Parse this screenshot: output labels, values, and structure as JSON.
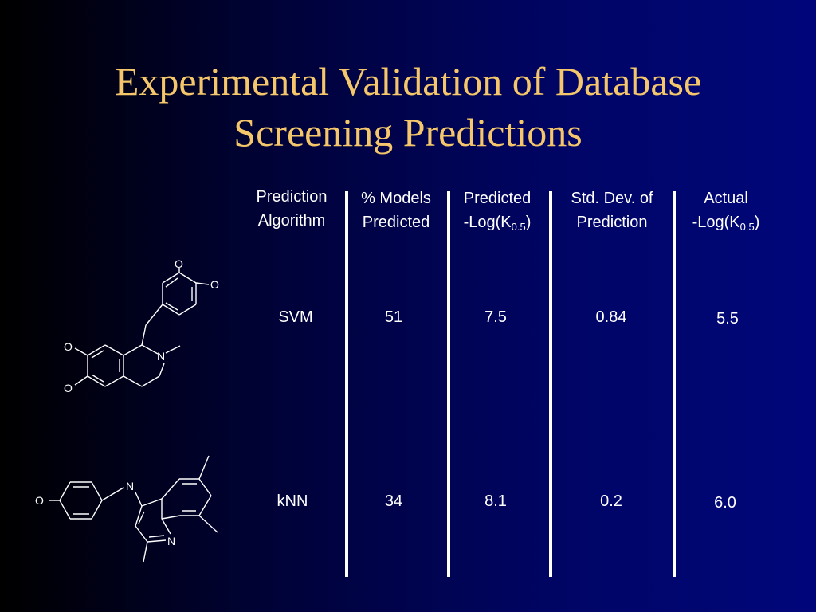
{
  "title": {
    "line1": "Experimental Validation of Database",
    "line2": "Screening Predictions"
  },
  "colors": {
    "title": "#f5c76a",
    "text": "#ffffff",
    "background_left": "#000000",
    "background_right": "#00067a"
  },
  "table": {
    "headers": [
      {
        "line1": "Prediction",
        "line2": "Algorithm"
      },
      {
        "line1": "% Models",
        "line2": "Predicted"
      },
      {
        "line1": "Predicted",
        "line2_prefix": "-Log(K",
        "line2_sub": "0.5",
        "line2_suffix": ")"
      },
      {
        "line1": "Std. Dev. of",
        "line2": "Prediction"
      },
      {
        "line1": "Actual",
        "line2_prefix": "-Log(K",
        "line2_sub": "0.5",
        "line2_suffix": ")"
      }
    ],
    "rows": [
      {
        "algorithm": "SVM",
        "models_predicted": "51",
        "predicted": "7.5",
        "std_dev": "0.84",
        "actual": "5.5"
      },
      {
        "algorithm": "kNN",
        "models_predicted": "34",
        "predicted": "8.1",
        "std_dev": "0.2",
        "actual": "6.0"
      }
    ]
  },
  "molecules": {
    "molecule1_atoms": {
      "o_top": "O",
      "o_right": "O",
      "o_left_upper": "O",
      "o_left_lower": "O",
      "n_ring": "N"
    },
    "molecule2_atoms": {
      "o_left": "O",
      "n_link": "N",
      "n_ring": "N"
    }
  }
}
